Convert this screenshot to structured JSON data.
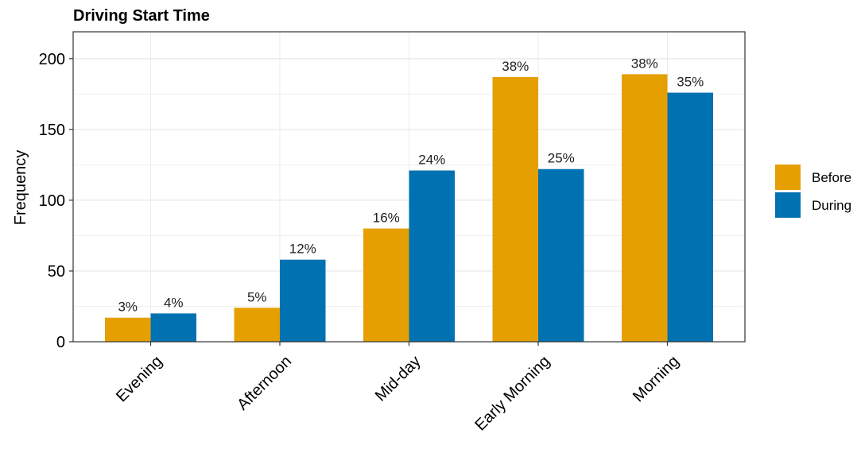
{
  "chart_data": {
    "type": "bar",
    "title": "Driving Start Time",
    "xlabel": "",
    "ylabel": "Frequency",
    "categories": [
      "Evening",
      "Afternoon",
      "Mid-day",
      "Early Morning",
      "Morning"
    ],
    "ylim": [
      0,
      219
    ],
    "yticks": [
      0,
      50,
      100,
      150,
      200
    ],
    "grid": true,
    "legend_position": "right",
    "series": [
      {
        "name": "Before",
        "color": "#E69F00",
        "values": [
          17,
          24,
          80,
          187,
          189
        ],
        "labels": [
          "3%",
          "5%",
          "16%",
          "38%",
          "38%"
        ]
      },
      {
        "name": "During",
        "color": "#0072B2",
        "values": [
          20,
          58,
          121,
          122,
          176
        ],
        "labels": [
          "4%",
          "12%",
          "24%",
          "25%",
          "35%"
        ]
      }
    ]
  }
}
